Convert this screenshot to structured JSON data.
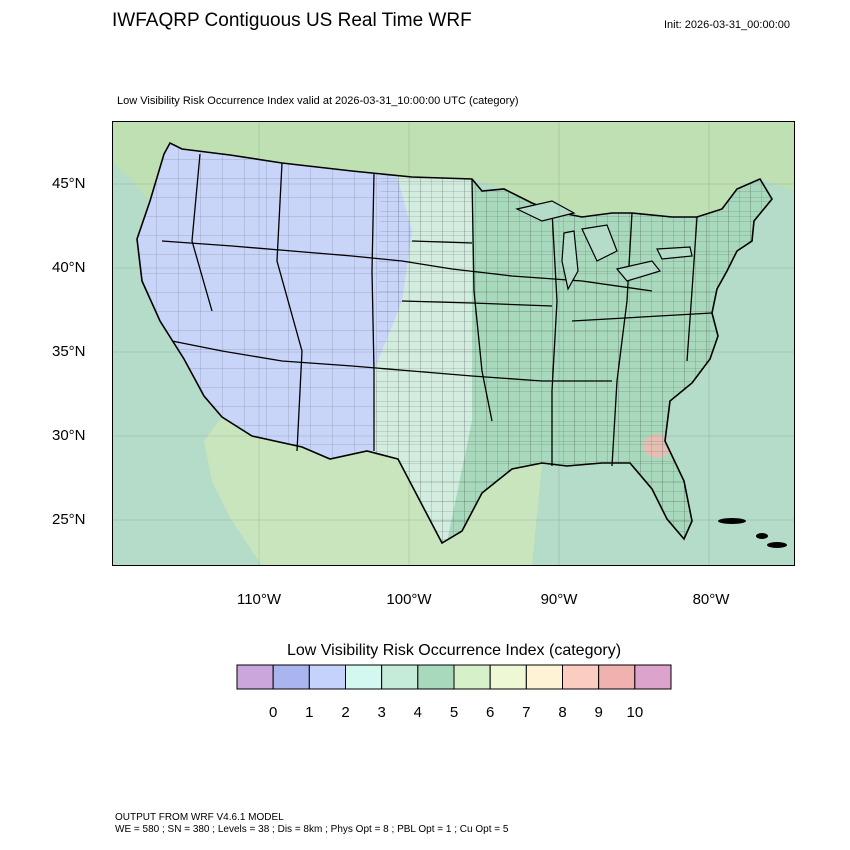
{
  "header": {
    "title": "IWFAQRP Contiguous US Real Time WRF",
    "init": "Init: 2026-03-31_00:00:00",
    "subtitle": "Low Visibility Risk Occurrence Index valid at 2026-03-31_10:00:00 UTC   (category)"
  },
  "map": {
    "lat_labels": [
      "45°N",
      "40°N",
      "35°N",
      "30°N",
      "25°N"
    ],
    "lon_labels": [
      "110°W",
      "100°W",
      "90°W",
      "80°W"
    ],
    "colors": {
      "ocean": "#b5dcc9",
      "land_west": "#c8d4f8",
      "land_plains": "#d2ecdf",
      "land_east": "#a8d9bd",
      "canada": "#bfe0b2",
      "mexico": "#c9e5bd",
      "hot": "#f2b8b2",
      "border": "#000000"
    }
  },
  "colorbar": {
    "title": "Low Visibility Risk Occurrence Index  (category)",
    "colors": [
      "#c9a6dc",
      "#aab4ee",
      "#c5d2fc",
      "#d3f8f0",
      "#c4ecd8",
      "#a8d9bd",
      "#d6f0c9",
      "#eef8d4",
      "#fff3d6",
      "#fbcdc0",
      "#f0b2ae",
      "#dca3cc"
    ],
    "labels": [
      "0",
      "1",
      "2",
      "3",
      "4",
      "5",
      "6",
      "7",
      "8",
      "9",
      "10"
    ]
  },
  "footer": {
    "line1": "OUTPUT FROM WRF V4.6.1 MODEL",
    "line2": "WE = 580 ; SN = 380 ; Levels = 38 ; Dis = 8km ; Phys Opt = 8 ; PBL Opt = 1 ; Cu Opt = 5"
  }
}
